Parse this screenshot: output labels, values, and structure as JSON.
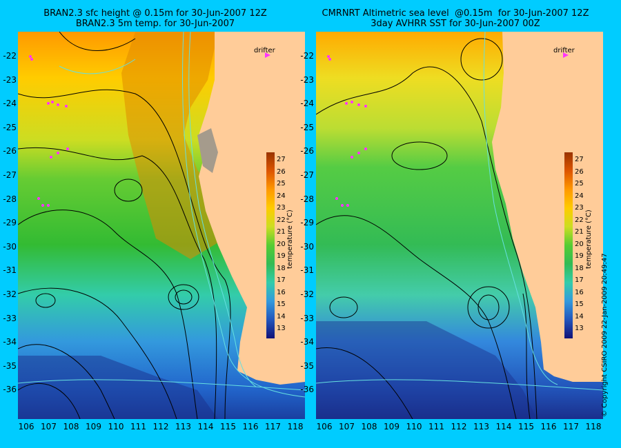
{
  "left": {
    "title_line1": "BRAN2.3 sfc height @ 0.15m for 30-Jun-2007 12Z",
    "title_line2": "BRAN2.3 5m temp. for 30-Jun-2007"
  },
  "right": {
    "title_line1": "CMRNRT Altimetric sea level  @0.15m  for 30-Jun-2007 12Z",
    "title_line2": "3day AVHRR SST for 30-Jun-2007 00Z"
  },
  "drifter_label": "drifter",
  "colorbar_label": "temperature (°C)",
  "colorbar_ticks": [
    "27",
    "26",
    "25",
    "24",
    "23",
    "22",
    "21",
    "20",
    "19",
    "18",
    "17",
    "16",
    "15",
    "14",
    "13"
  ],
  "lat_labels": [
    "-22",
    "-23",
    "-24",
    "-25",
    "-26",
    "-27",
    "-28",
    "-29",
    "-30",
    "-31",
    "-32",
    "-33",
    "-34",
    "-35",
    "-36"
  ],
  "lon_labels": [
    "106",
    "107",
    "108",
    "109",
    "110",
    "111",
    "112",
    "113",
    "114",
    "115",
    "116",
    "117",
    "118"
  ],
  "copyright": "© Copyright CSIRO 2009   22-Jan-2009 20:49:47",
  "colors": {
    "background": "#00ccff",
    "land": "#ffcc99",
    "contour": "#000000",
    "isobath": "#66e0e0",
    "drifter": "#ff33ff"
  }
}
